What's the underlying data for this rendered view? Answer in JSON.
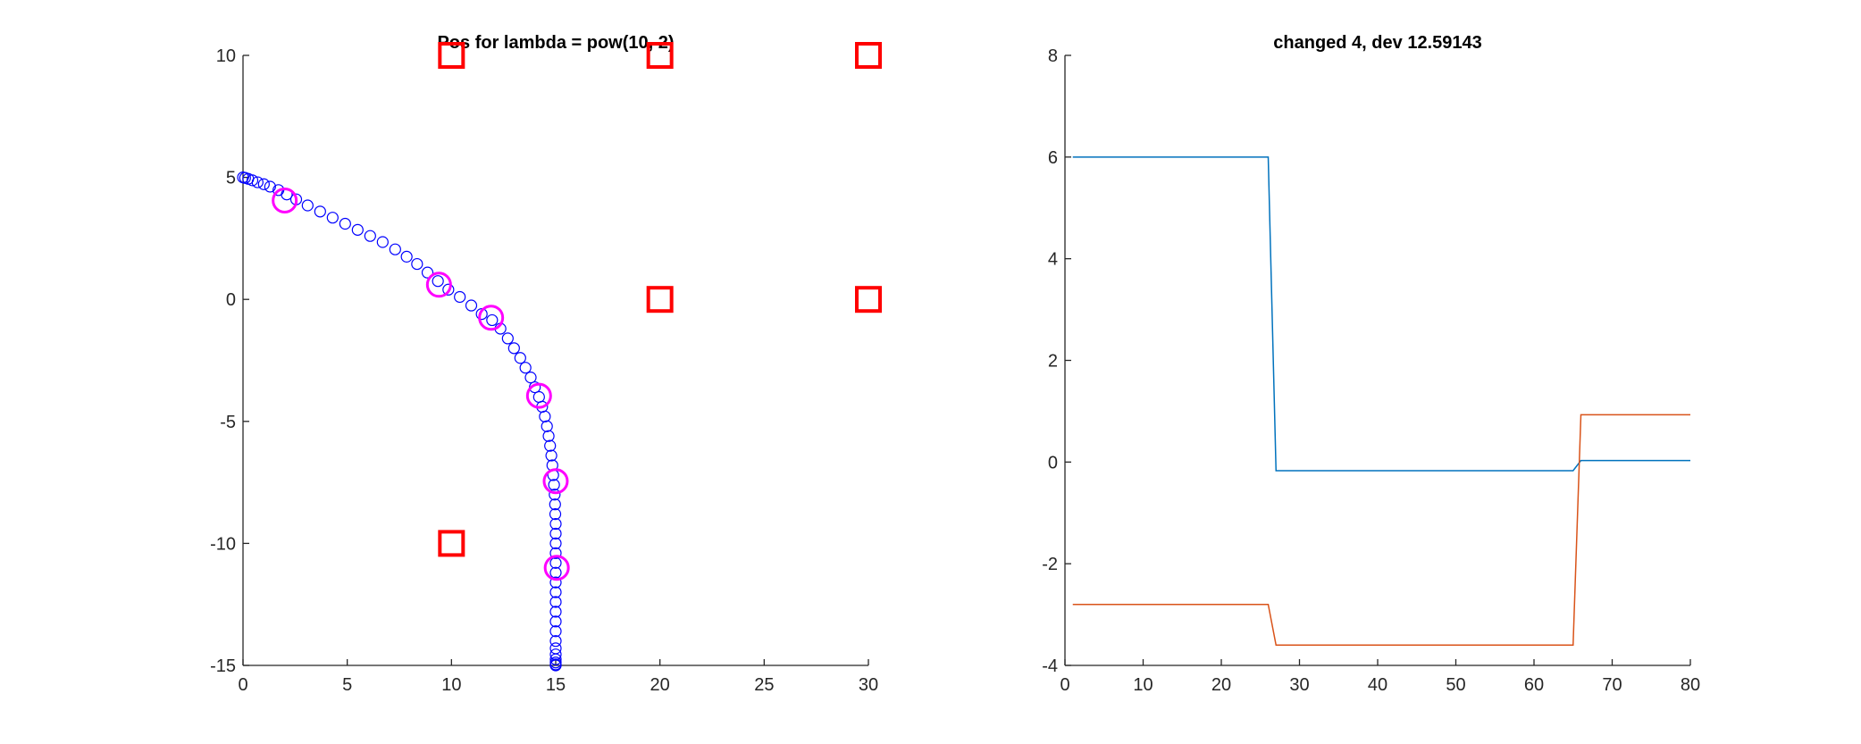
{
  "chart_data": [
    {
      "type": "scatter",
      "title": "Pos for lambda = pow(10, 2)",
      "xlim": [
        0,
        30
      ],
      "ylim": [
        -15,
        10
      ],
      "xticks": [
        0,
        5,
        10,
        15,
        20,
        25,
        30
      ],
      "yticks": [
        -15,
        -10,
        -5,
        0,
        5,
        10
      ],
      "grid": false,
      "colors": {
        "path": "#0000ff",
        "highlight": "#ff00ff",
        "obstacle": "#ff0000"
      },
      "series": [
        {
          "marker": "small-circle",
          "color": "#0000ff",
          "points": [
            [
              0.0,
              5.0
            ],
            [
              0.1,
              4.98
            ],
            [
              0.25,
              4.94
            ],
            [
              0.45,
              4.88
            ],
            [
              0.7,
              4.8
            ],
            [
              1.0,
              4.72
            ],
            [
              1.3,
              4.62
            ],
            [
              1.7,
              4.48
            ],
            [
              2.1,
              4.3
            ],
            [
              2.55,
              4.1
            ],
            [
              3.1,
              3.85
            ],
            [
              3.7,
              3.6
            ],
            [
              4.3,
              3.35
            ],
            [
              4.9,
              3.1
            ],
            [
              5.5,
              2.85
            ],
            [
              6.1,
              2.6
            ],
            [
              6.7,
              2.35
            ],
            [
              7.3,
              2.05
            ],
            [
              7.85,
              1.75
            ],
            [
              8.35,
              1.45
            ],
            [
              8.85,
              1.1
            ],
            [
              9.35,
              0.75
            ],
            [
              9.85,
              0.4
            ],
            [
              10.4,
              0.1
            ],
            [
              10.95,
              -0.25
            ],
            [
              11.45,
              -0.6
            ],
            [
              11.95,
              -0.85
            ],
            [
              12.35,
              -1.2
            ],
            [
              12.7,
              -1.6
            ],
            [
              13.0,
              -2.0
            ],
            [
              13.3,
              -2.4
            ],
            [
              13.55,
              -2.8
            ],
            [
              13.8,
              -3.2
            ],
            [
              14.0,
              -3.6
            ],
            [
              14.2,
              -4.0
            ],
            [
              14.35,
              -4.4
            ],
            [
              14.48,
              -4.8
            ],
            [
              14.58,
              -5.2
            ],
            [
              14.66,
              -5.6
            ],
            [
              14.73,
              -6.0
            ],
            [
              14.79,
              -6.4
            ],
            [
              14.84,
              -6.8
            ],
            [
              14.88,
              -7.2
            ],
            [
              14.92,
              -7.6
            ],
            [
              14.95,
              -8.0
            ],
            [
              14.97,
              -8.4
            ],
            [
              14.98,
              -8.8
            ],
            [
              15.0,
              -9.2
            ],
            [
              15.0,
              -9.6
            ],
            [
              15.0,
              -10.0
            ],
            [
              15.0,
              -10.4
            ],
            [
              15.0,
              -10.8
            ],
            [
              15.0,
              -11.2
            ],
            [
              15.0,
              -11.6
            ],
            [
              15.0,
              -12.0
            ],
            [
              15.0,
              -12.4
            ],
            [
              15.0,
              -12.8
            ],
            [
              15.0,
              -13.2
            ],
            [
              15.0,
              -13.6
            ],
            [
              15.0,
              -14.0
            ],
            [
              15.0,
              -14.3
            ],
            [
              15.0,
              -14.55
            ],
            [
              15.0,
              -14.75
            ],
            [
              15.0,
              -14.88
            ],
            [
              15.0,
              -14.96
            ],
            [
              15.0,
              -15.0
            ]
          ]
        },
        {
          "marker": "large-circle",
          "color": "#ff00ff",
          "points": [
            [
              2.0,
              4.05
            ],
            [
              9.4,
              0.6
            ],
            [
              11.9,
              -0.75
            ],
            [
              14.2,
              -3.95
            ],
            [
              15.0,
              -7.45
            ],
            [
              15.05,
              -11.0
            ]
          ]
        },
        {
          "marker": "square",
          "color": "#ff0000",
          "points": [
            [
              10,
              10
            ],
            [
              20,
              10
            ],
            [
              30,
              10
            ],
            [
              20,
              0
            ],
            [
              30,
              0
            ],
            [
              10,
              -10
            ]
          ]
        }
      ]
    },
    {
      "type": "line",
      "title": "changed 4, dev 12.59143",
      "xlim": [
        0,
        80
      ],
      "ylim": [
        -4,
        8
      ],
      "xticks": [
        0,
        10,
        20,
        30,
        40,
        50,
        60,
        70,
        80
      ],
      "yticks": [
        -4,
        -2,
        0,
        2,
        4,
        6,
        8
      ],
      "grid": false,
      "series": [
        {
          "color": "#0072bd",
          "x": [
            1,
            26,
            27,
            65,
            66,
            80
          ],
          "values": [
            6.0,
            6.0,
            -0.17,
            -0.17,
            0.03,
            0.03
          ]
        },
        {
          "color": "#d95319",
          "x": [
            1,
            26,
            27,
            65,
            66,
            80
          ],
          "values": [
            -2.8,
            -2.8,
            -3.6,
            -3.6,
            0.93,
            0.93
          ]
        }
      ]
    }
  ]
}
